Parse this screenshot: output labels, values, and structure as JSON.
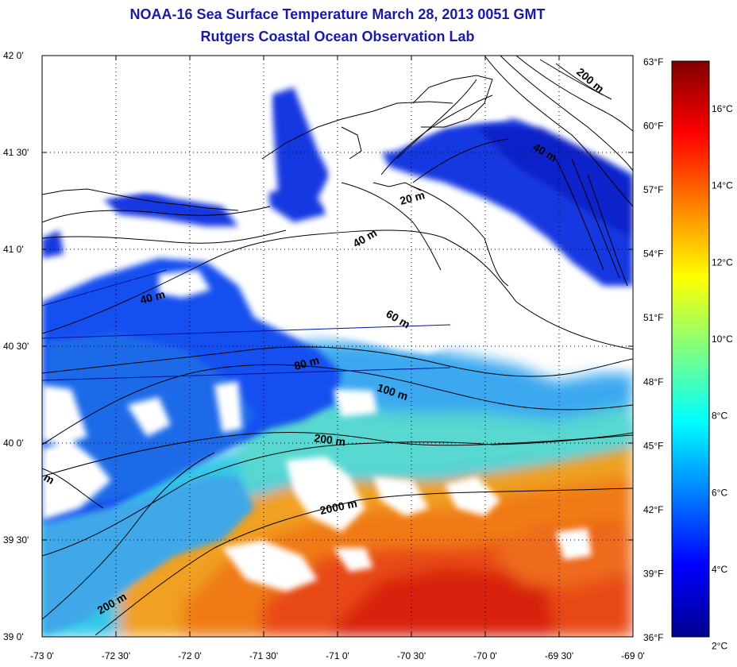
{
  "title": {
    "line1": "NOAA-16 Sea Surface Temperature March 28, 2013 0051 GMT",
    "line2": "Rutgers Coastal Ocean Observation Lab"
  },
  "map": {
    "lon_ticks": [
      "-73 0'",
      "-72 30'",
      "-72 0'",
      "-71 30'",
      "-71 0'",
      "-70 30'",
      "-70 0'",
      "-69 30'",
      "-69 0'"
    ],
    "lat_ticks": [
      "42 0'",
      "41 30'",
      "41 0'",
      "40 30'",
      "40 0'",
      "39 30'",
      "39 0'"
    ],
    "lon_range": [
      -73,
      -69
    ],
    "lat_range": [
      39,
      42
    ],
    "isobath_labels": [
      "200 m",
      "40 m",
      "20 m",
      "40 m",
      "40 m",
      "60 m",
      "80 m",
      "100 m",
      "200 m",
      "m",
      "2000 m",
      "200 m"
    ]
  },
  "colorbar": {
    "fahrenheit_labels": [
      "63°F",
      "60°F",
      "57°F",
      "54°F",
      "51°F",
      "48°F",
      "45°F",
      "42°F",
      "39°F",
      "36°F"
    ],
    "celsius_labels": [
      "16°C",
      "14°C",
      "12°C",
      "10°C",
      "8°C",
      "6°C",
      "4°C",
      "2°C"
    ],
    "colors": [
      "#00008f",
      "#0000ff",
      "#0080ff",
      "#00ffff",
      "#80ff80",
      "#ffff00",
      "#ff8000",
      "#ff0000",
      "#800000"
    ]
  }
}
